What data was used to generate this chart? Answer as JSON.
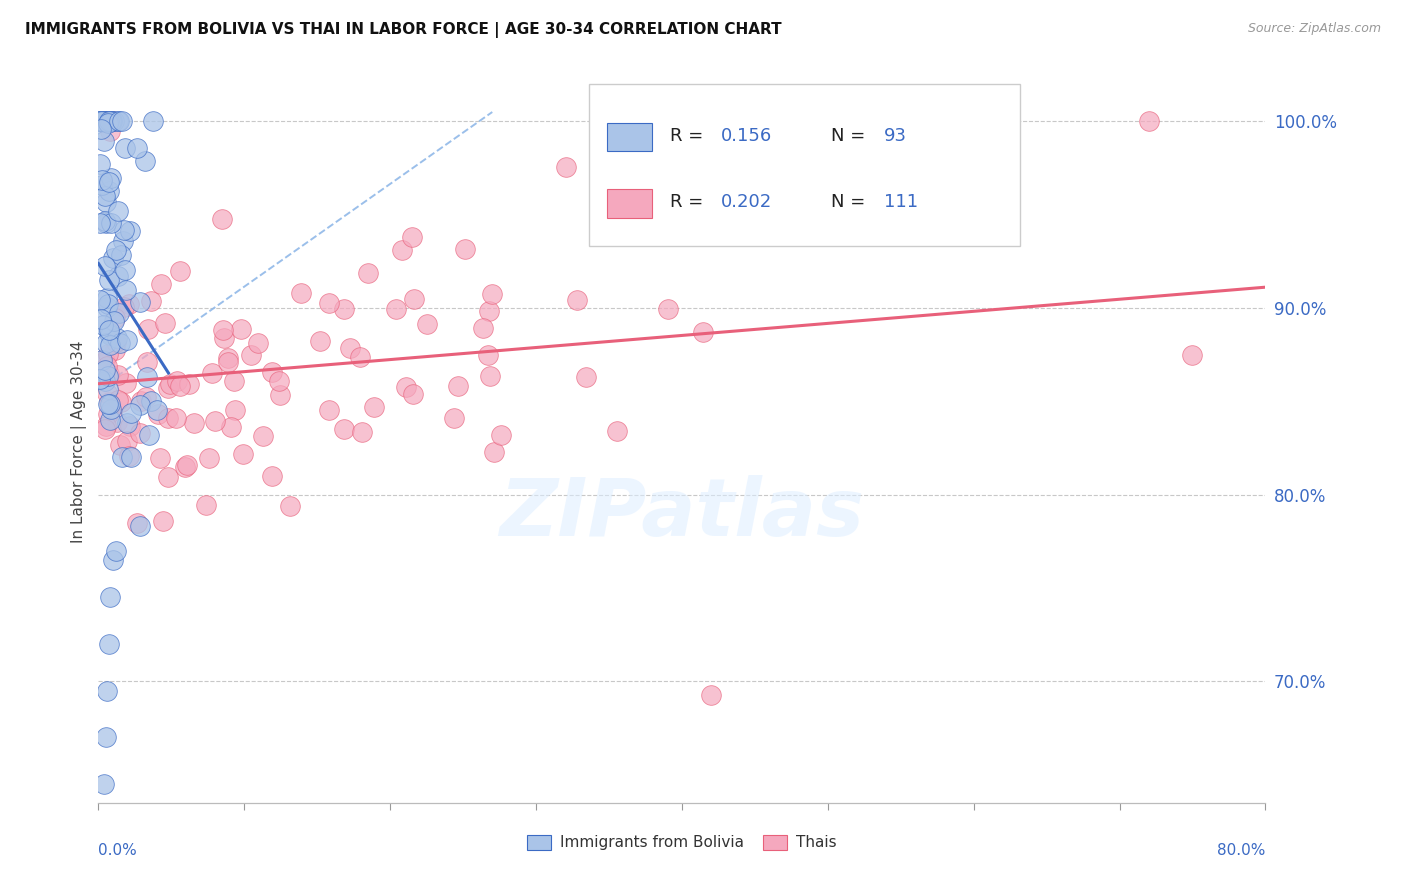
{
  "title": "IMMIGRANTS FROM BOLIVIA VS THAI IN LABOR FORCE | AGE 30-34 CORRELATION CHART",
  "source": "Source: ZipAtlas.com",
  "ylabel": "In Labor Force | Age 30-34",
  "ytick_labels": [
    "70.0%",
    "80.0%",
    "90.0%",
    "100.0%"
  ],
  "ytick_values": [
    0.7,
    0.8,
    0.9,
    1.0
  ],
  "xmin": 0.0,
  "xmax": 0.8,
  "ymin": 0.635,
  "ymax": 1.022,
  "bolivia_color": "#aac4e8",
  "thai_color": "#f5a8be",
  "bolivia_line_color": "#3b6ac4",
  "thai_line_color": "#e8607a",
  "diag_color": "#90b8e8",
  "watermark": "ZIPatlas",
  "legend_R_color": "#3b6ac4",
  "legend_N_color": "#3b6ac4",
  "bolivia_N": 93,
  "thai_N": 111
}
